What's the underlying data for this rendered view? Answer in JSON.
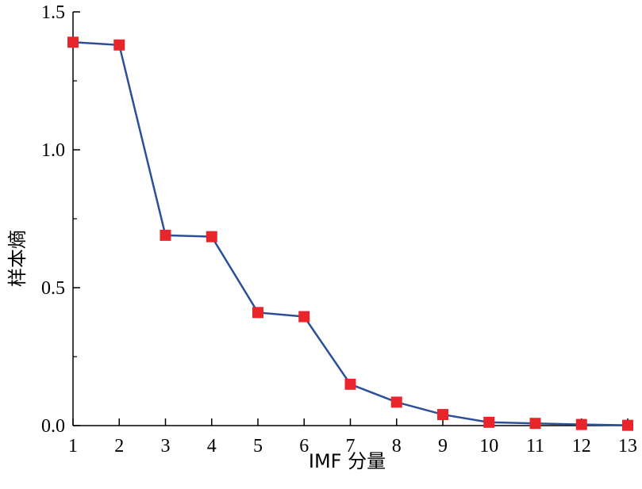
{
  "chart_data": {
    "type": "line",
    "title": "",
    "xlabel": "IMF 分量",
    "ylabel": "样本熵",
    "x": [
      1,
      2,
      3,
      4,
      5,
      6,
      7,
      8,
      9,
      10,
      11,
      12,
      13
    ],
    "series": [
      {
        "values": [
          1.39,
          1.38,
          0.69,
          0.685,
          0.41,
          0.395,
          0.15,
          0.085,
          0.04,
          0.012,
          0.008,
          0.004,
          0.001
        ]
      }
    ],
    "xlim": [
      1,
      13
    ],
    "ylim": [
      0,
      1.5
    ],
    "x_ticks": [
      "1",
      "2",
      "3",
      "4",
      "5",
      "6",
      "7",
      "8",
      "9",
      "10",
      "11",
      "12",
      "13"
    ],
    "y_ticks": [
      "0.0",
      "0.5",
      "1.0",
      "1.5"
    ],
    "y_tick_values": [
      0,
      0.5,
      1.0,
      1.5
    ],
    "line_color": "#2b4f9a",
    "marker_color": "#e8252b",
    "grid": false,
    "legend": "none"
  }
}
